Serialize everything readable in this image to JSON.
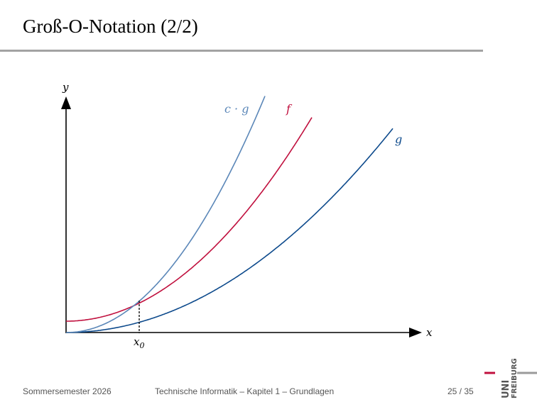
{
  "slide": {
    "title": "Groß-O-Notation (2/2)"
  },
  "diagram": {
    "axis_y_label": "y",
    "axis_x_label": "x",
    "x0_label": "x",
    "x0_subscript": "0",
    "curve_cg_label": "c · g",
    "curve_f_label": "f",
    "curve_g_label": "g",
    "colors": {
      "cg": "#5b87b8",
      "f": "#c0103e",
      "g": "#0d4a8c",
      "axis": "#000000"
    }
  },
  "footer": {
    "semester": "Sommersemester 2026",
    "course": "Technische Informatik – Kapitel 1 – Grundlagen",
    "page": "25 / 35"
  },
  "logo": {
    "line1": "UNI",
    "line2": "FREIBURG",
    "accent_color": "#c0103e"
  }
}
